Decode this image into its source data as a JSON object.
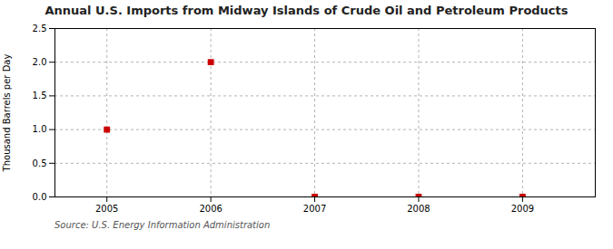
{
  "chart_data": {
    "type": "scatter",
    "title": "Annual U.S. Imports from Midway Islands of Crude Oil and Petroleum Products",
    "ylabel": "Thousand Barrels per Day",
    "annotation": "Source: U.S. Energy Information Administration",
    "x": [
      2005,
      2006,
      2007,
      2008,
      2009
    ],
    "values": [
      1.0,
      2.0,
      0.0,
      0.0,
      0.0
    ],
    "color": "#cc0000",
    "marker": "square",
    "xlim": [
      2004.5,
      2009.7
    ],
    "xticks": [
      2005,
      2006,
      2007,
      2008,
      2009
    ],
    "ylim": [
      0.0,
      2.5
    ],
    "yticks": [
      {
        "value": 0.0,
        "label": "0.0"
      },
      0.5,
      {
        "value": 1.0,
        "label": "1.0"
      },
      1.5,
      {
        "value": 2.0,
        "label": "2.0"
      },
      2.5
    ],
    "grid": true
  }
}
